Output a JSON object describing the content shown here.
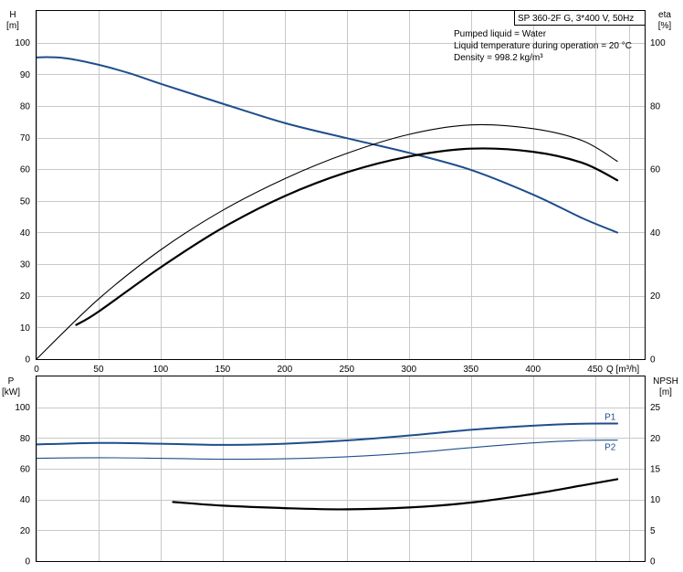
{
  "chart_data": [
    {
      "type": "line",
      "panel": "head-efficiency",
      "info": {
        "title": "SP 360-2F G, 3*400 V, 50Hz",
        "lines": [
          "Pumped liquid = Water",
          "Liquid temperature during operation = 20 °C",
          "Density = 998.2 kg/m³"
        ]
      },
      "xlabel": "Q [m³/h]",
      "xlim": [
        0,
        490
      ],
      "xticks": [
        0,
        50,
        100,
        150,
        200,
        250,
        300,
        350,
        400,
        450
      ],
      "ylabel_left": "H",
      "yunit_left": "[m]",
      "ylim_left": [
        0,
        110
      ],
      "yticks_left": [
        0,
        10,
        20,
        30,
        40,
        50,
        60,
        70,
        80,
        90,
        100
      ],
      "ylabel_right": "eta",
      "yunit_right": "[%]",
      "ylim_right": [
        0,
        110
      ],
      "yticks_right": [
        0,
        20,
        40,
        60,
        80,
        100
      ],
      "grid": true,
      "series": [
        {
          "axis": "left",
          "color": "#1f4e8c",
          "points": [
            [
              0,
              95.3
            ],
            [
              10,
              95.4
            ],
            [
              25,
              95
            ],
            [
              50,
              93
            ],
            [
              75,
              90.3
            ],
            [
              100,
              87
            ],
            [
              150,
              80.7
            ],
            [
              200,
              74.6
            ],
            [
              250,
              69.8
            ],
            [
              300,
              65.2
            ],
            [
              350,
              59.8
            ],
            [
              400,
              52
            ],
            [
              440,
              44.5
            ],
            [
              468,
              40
            ]
          ]
        },
        {
          "axis": "right",
          "color": "#000000",
          "points": [
            [
              0,
              0
            ],
            [
              50,
              19
            ],
            [
              100,
              34.5
            ],
            [
              150,
              47
            ],
            [
              200,
              57
            ],
            [
              250,
              65
            ],
            [
              300,
              71
            ],
            [
              350,
              74
            ],
            [
              400,
              72.8
            ],
            [
              440,
              69
            ],
            [
              468,
              62.5
            ]
          ]
        },
        {
          "axis": "right",
          "color": "#000000",
          "points": [
            [
              32,
              10.8
            ],
            [
              50,
              15
            ],
            [
              100,
              29
            ],
            [
              150,
              41.5
            ],
            [
              200,
              51.5
            ],
            [
              250,
              59
            ],
            [
              300,
              64
            ],
            [
              350,
              66.5
            ],
            [
              400,
              65.5
            ],
            [
              440,
              62
            ],
            [
              468,
              56.5
            ]
          ]
        }
      ]
    },
    {
      "type": "line",
      "panel": "power-npsh",
      "xlim": [
        0,
        490
      ],
      "xticks": [
        0,
        50,
        100,
        150,
        200,
        250,
        300,
        350,
        400,
        450
      ],
      "ylabel_left": "P",
      "yunit_left": "[kW]",
      "ylim_left": [
        0,
        120
      ],
      "yticks_left": [
        0,
        20,
        40,
        60,
        80,
        100
      ],
      "ylabel_right": "NPSH",
      "yunit_right": "[m]",
      "ylim_right": [
        0,
        30
      ],
      "yticks_right": [
        0,
        5,
        10,
        15,
        20,
        25
      ],
      "grid": true,
      "series": [
        {
          "name": "P1",
          "axis": "left",
          "color": "#1f4e8c",
          "points": [
            [
              0,
              75.8
            ],
            [
              50,
              76.8
            ],
            [
              100,
              76.3
            ],
            [
              150,
              75.5
            ],
            [
              200,
              76.3
            ],
            [
              250,
              78.4
            ],
            [
              300,
              81.6
            ],
            [
              350,
              85.3
            ],
            [
              400,
              88
            ],
            [
              440,
              89.3
            ],
            [
              468,
              89.4
            ]
          ]
        },
        {
          "name": "P2",
          "axis": "left",
          "color": "#1f4e8c",
          "points": [
            [
              0,
              66.8
            ],
            [
              50,
              67.2
            ],
            [
              100,
              66.8
            ],
            [
              150,
              66.2
            ],
            [
              200,
              66.5
            ],
            [
              250,
              67.8
            ],
            [
              300,
              70.2
            ],
            [
              350,
              73.7
            ],
            [
              400,
              76.8
            ],
            [
              440,
              78.4
            ],
            [
              468,
              78.6
            ]
          ]
        },
        {
          "axis": "right",
          "color": "#000000",
          "points": [
            [
              110,
              9.6
            ],
            [
              150,
              9
            ],
            [
              200,
              8.6
            ],
            [
              250,
              8.4
            ],
            [
              300,
              8.7
            ],
            [
              350,
              9.5
            ],
            [
              400,
              10.9
            ],
            [
              440,
              12.3
            ],
            [
              468,
              13.3
            ]
          ]
        }
      ]
    }
  ]
}
